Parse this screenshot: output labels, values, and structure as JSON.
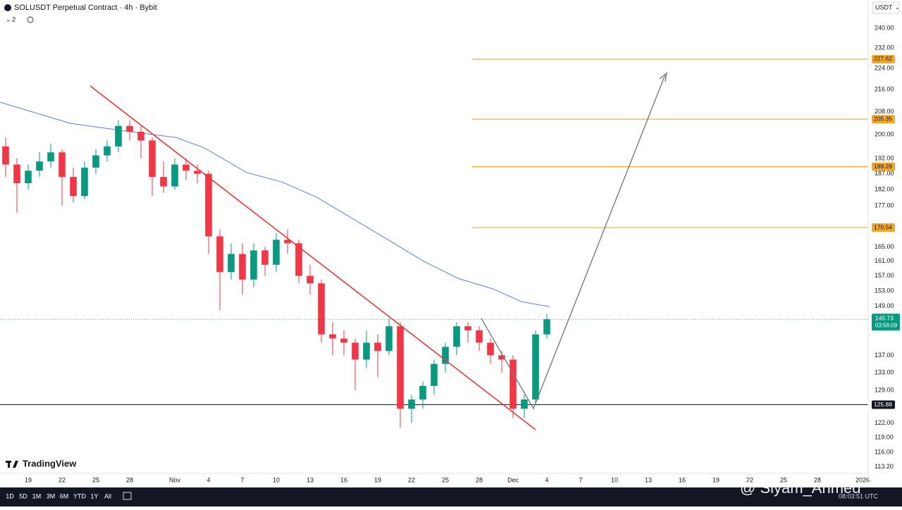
{
  "header": {
    "title": "SOLUSDT Perpetual Contract · 4h · Bybit",
    "indicator_count": "2",
    "currency": "USDT"
  },
  "brand": "TradingView",
  "toolbar": {
    "ranges": [
      "1D",
      "5D",
      "1M",
      "3M",
      "6M",
      "YTD",
      "1Y",
      "All"
    ],
    "clock": "08:03:51 UTC"
  },
  "watermark": "@ Siyam_Ahmed",
  "chart_data": {
    "type": "candlestick",
    "log_scale": true,
    "up_color": "#089981",
    "down_color": "#f23645",
    "xlim": [
      -2.5,
      74.5
    ],
    "ylim": [
      111.9,
      251.9
    ],
    "xticks": [
      {
        "value": 0,
        "label": "19"
      },
      {
        "value": 3,
        "label": "22"
      },
      {
        "value": 6,
        "label": "25"
      },
      {
        "value": 9,
        "label": "28"
      },
      {
        "value": 13,
        "label": "Nov"
      },
      {
        "value": 16,
        "label": "4"
      },
      {
        "value": 19,
        "label": "7"
      },
      {
        "value": 22,
        "label": "10"
      },
      {
        "value": 25,
        "label": "13"
      },
      {
        "value": 28,
        "label": "16"
      },
      {
        "value": 31,
        "label": "19"
      },
      {
        "value": 34,
        "label": "22"
      },
      {
        "value": 37,
        "label": "25"
      },
      {
        "value": 40,
        "label": "28"
      },
      {
        "value": 43,
        "label": "Dec"
      },
      {
        "value": 46,
        "label": "4"
      },
      {
        "value": 49,
        "label": "7"
      },
      {
        "value": 52,
        "label": "10"
      },
      {
        "value": 55,
        "label": "13"
      },
      {
        "value": 58,
        "label": "16"
      },
      {
        "value": 61,
        "label": "19"
      },
      {
        "value": 64,
        "label": "22"
      },
      {
        "value": 67,
        "label": "25"
      },
      {
        "value": 70,
        "label": "28"
      },
      {
        "value": 74,
        "label": "2026"
      }
    ],
    "yticks": [
      {
        "value": 240,
        "label": "240.00"
      },
      {
        "value": 232,
        "label": "232.00"
      },
      {
        "value": 224,
        "label": "224.00"
      },
      {
        "value": 216,
        "label": "216.00"
      },
      {
        "value": 208,
        "label": "208.00"
      },
      {
        "value": 200,
        "label": "200.00"
      },
      {
        "value": 192,
        "label": "192.00"
      },
      {
        "value": 187,
        "label": "187.00"
      },
      {
        "value": 182,
        "label": "182.00"
      },
      {
        "value": 177,
        "label": "177.00"
      },
      {
        "value": 165,
        "label": "165.00"
      },
      {
        "value": 161,
        "label": "161.00"
      },
      {
        "value": 157,
        "label": "157.00"
      },
      {
        "value": 153,
        "label": "153.00"
      },
      {
        "value": 149,
        "label": "149.00"
      },
      {
        "value": 137,
        "label": "137.00"
      },
      {
        "value": 133,
        "label": "133.00"
      },
      {
        "value": 129,
        "label": "129.00"
      },
      {
        "value": 122,
        "label": "122.00"
      },
      {
        "value": 119,
        "label": "119.00"
      },
      {
        "value": 116,
        "label": "116.00"
      },
      {
        "value": 113.2,
        "label": "113.20"
      }
    ],
    "x": [
      -2,
      -1,
      0,
      1,
      2,
      3,
      4,
      5,
      6,
      7,
      8,
      9,
      10,
      11,
      12,
      13,
      14,
      15,
      16,
      17,
      18,
      19,
      20,
      21,
      22,
      23,
      24,
      25,
      26,
      27,
      28,
      29,
      30,
      31,
      32,
      33,
      34,
      35,
      36,
      37,
      38,
      39,
      40,
      41,
      42,
      43,
      44,
      45,
      46
    ],
    "ohlc": [
      [
        196,
        199,
        186,
        190
      ],
      [
        190,
        192,
        175,
        184
      ],
      [
        184,
        190,
        182,
        188
      ],
      [
        188,
        194,
        186,
        191
      ],
      [
        191,
        197,
        189,
        194
      ],
      [
        194,
        195,
        177,
        186
      ],
      [
        186,
        189,
        178,
        180
      ],
      [
        180,
        191,
        179,
        189
      ],
      [
        189,
        195,
        187,
        193
      ],
      [
        193,
        198,
        191,
        196
      ],
      [
        196,
        205,
        194,
        203
      ],
      [
        203,
        205,
        198,
        201
      ],
      [
        201,
        203,
        192,
        198
      ],
      [
        198,
        199,
        180,
        186
      ],
      [
        186,
        191,
        181,
        183
      ],
      [
        183,
        192,
        182,
        190
      ],
      [
        190,
        192,
        185,
        188
      ],
      [
        188,
        190,
        184,
        187
      ],
      [
        187,
        188,
        163,
        168
      ],
      [
        168,
        170,
        148,
        158
      ],
      [
        158,
        166,
        156,
        163
      ],
      [
        163,
        166,
        152,
        156
      ],
      [
        156,
        166,
        154,
        164
      ],
      [
        164,
        165,
        157,
        160
      ],
      [
        160,
        169,
        158,
        167
      ],
      [
        167,
        170,
        163,
        166
      ],
      [
        166,
        167,
        155,
        157
      ],
      [
        157,
        160,
        152,
        155
      ],
      [
        155,
        156,
        140,
        142
      ],
      [
        142,
        145,
        137,
        141
      ],
      [
        141,
        143,
        137,
        140
      ],
      [
        140,
        141,
        129,
        136
      ],
      [
        136,
        143,
        134,
        140
      ],
      [
        140,
        142,
        132,
        138
      ],
      [
        138,
        146,
        137,
        144
      ],
      [
        144,
        145,
        121,
        125
      ],
      [
        125,
        128,
        122,
        127
      ],
      [
        127,
        131,
        125,
        130
      ],
      [
        130,
        136,
        128,
        135
      ],
      [
        135,
        140,
        133,
        139
      ],
      [
        139,
        145,
        137,
        144
      ],
      [
        144,
        145,
        140,
        143
      ],
      [
        143,
        144,
        138,
        140
      ],
      [
        140,
        141,
        135,
        137
      ],
      [
        137,
        138,
        133,
        136
      ],
      [
        136,
        137,
        123,
        125
      ],
      [
        125,
        128,
        123,
        127
      ],
      [
        127,
        143,
        126,
        142
      ],
      [
        142,
        147,
        141,
        145.73
      ]
    ],
    "countdown": "03:56:09",
    "ma": {
      "color": "#5b7fd6",
      "x": [
        -2.5,
        3.75,
        8.125,
        13.125,
        15.625,
        19.375,
        22.5,
        25.625,
        28.75,
        31.875,
        35,
        38.125,
        41.25,
        43.75,
        46.25
      ],
      "values": [
        211.4,
        203.9,
        201.5,
        199.0,
        195.5,
        187.4,
        184.4,
        179.6,
        173.2,
        167.1,
        161.1,
        156.3,
        153.5,
        150.2,
        148.9
      ]
    },
    "price_lines": [
      {
        "value": 227.62,
        "color": "#f5a623"
      },
      {
        "value": 205.35,
        "color": "#f5a623"
      },
      {
        "value": 189.29,
        "color": "#f5a623"
      },
      {
        "value": 170.54,
        "color": "#f5a623"
      },
      {
        "value": 125.88,
        "color": "#131722"
      }
    ]
  }
}
